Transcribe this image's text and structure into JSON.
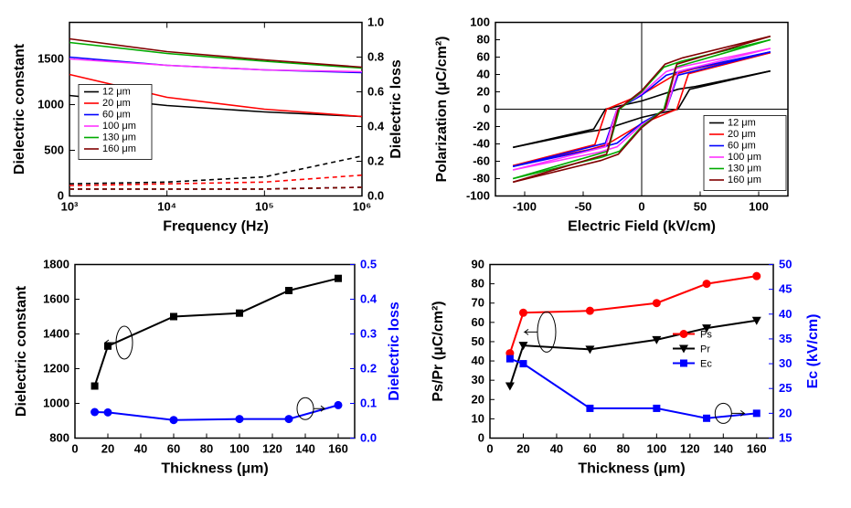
{
  "palette": {
    "series": [
      "#000000",
      "#ff0000",
      "#0000ff",
      "#ff33ff",
      "#00aa00",
      "#800000"
    ],
    "axis": "#000000",
    "axis2_blue": "#0000ff",
    "marker_red": "#ff0000",
    "marker_black": "#000000",
    "marker_blue": "#0000ff",
    "background": "#ffffff"
  },
  "legend_unit": "μm",
  "chart_tl": {
    "type": "line",
    "xlabel": "Frequency (Hz)",
    "ylabel_left": "Dielectric constant",
    "ylabel_right": "Dielectric loss",
    "xlog": true,
    "xlim": [
      1000,
      1000000
    ],
    "xticks": [
      1000,
      10000,
      100000,
      1000000
    ],
    "xtick_labels": [
      "10³",
      "10⁴",
      "10⁵",
      "10⁶"
    ],
    "ylim_left": [
      0,
      1900
    ],
    "yticks_left": [
      0,
      500,
      1000,
      1500
    ],
    "ylim_right": [
      0.0,
      1.0
    ],
    "yticks_right": [
      0.0,
      0.2,
      0.4,
      0.6,
      0.8,
      1.0
    ],
    "series_labels": [
      "12 μm",
      "20 μm",
      "60 μm",
      "100 μm",
      "130 μm",
      "160 μm"
    ],
    "solid_values_at_ticks": [
      [
        1100,
        990,
        920,
        870
      ],
      [
        1330,
        1080,
        950,
        870
      ],
      [
        1520,
        1430,
        1380,
        1350
      ],
      [
        1500,
        1430,
        1380,
        1360
      ],
      [
        1680,
        1560,
        1475,
        1400
      ],
      [
        1720,
        1580,
        1490,
        1410
      ]
    ],
    "dashed_values_at_ticks": [
      [
        0.07,
        0.08,
        0.11,
        0.23
      ],
      [
        0.06,
        0.07,
        0.08,
        0.12
      ],
      [
        0.04,
        0.04,
        0.04,
        0.05
      ],
      [
        0.04,
        0.04,
        0.04,
        0.05
      ],
      [
        0.04,
        0.04,
        0.04,
        0.05
      ],
      [
        0.04,
        0.04,
        0.04,
        0.05
      ]
    ],
    "label_fontsize": 16,
    "tick_fontsize": 13,
    "line_width": 1.6
  },
  "chart_tr": {
    "type": "line",
    "xlabel": "Electric Field (kV/cm)",
    "ylabel": "Polarization (μC/cm²)",
    "xlim": [
      -125,
      125
    ],
    "xticks": [
      -100,
      -50,
      0,
      50,
      100
    ],
    "ylim": [
      -100,
      100
    ],
    "yticks": [
      -100,
      -80,
      -60,
      -40,
      -20,
      0,
      20,
      40,
      60,
      80,
      100
    ],
    "series_labels": [
      "12 μm",
      "20 μm",
      "60 μm",
      "100 μm",
      "130 μm",
      "160 μm"
    ],
    "loops": [
      {
        "Ps": 44,
        "Pr": 27,
        "Ec": 31
      },
      {
        "Ps": 65,
        "Pr": 48,
        "Ec": 30
      },
      {
        "Ps": 66,
        "Pr": 46,
        "Ec": 21
      },
      {
        "Ps": 70,
        "Pr": 51,
        "Ec": 21
      },
      {
        "Ps": 80,
        "Pr": 57,
        "Ec": 19
      },
      {
        "Ps": 84,
        "Pr": 61,
        "Ec": 20
      }
    ],
    "Emax": 110,
    "label_fontsize": 16,
    "tick_fontsize": 13,
    "line_width": 1.6
  },
  "chart_bl": {
    "type": "scatter-line-dual",
    "xlabel": "Thickness (μm)",
    "ylabel_left": "Dielectric constant",
    "ylabel_right": "Dielectric loss",
    "xlim": [
      0,
      170
    ],
    "xticks": [
      0,
      20,
      40,
      60,
      80,
      100,
      120,
      140,
      160
    ],
    "ylim_left": [
      800,
      1800
    ],
    "yticks_left": [
      800,
      1000,
      1200,
      1400,
      1600,
      1800
    ],
    "ylim_right": [
      0.0,
      0.5
    ],
    "yticks_right": [
      0.0,
      0.1,
      0.2,
      0.3,
      0.4,
      0.5
    ],
    "x_values": [
      12,
      20,
      60,
      100,
      130,
      160
    ],
    "constant_values": [
      1100,
      1330,
      1500,
      1520,
      1650,
      1720
    ],
    "loss_values": [
      0.075,
      0.074,
      0.052,
      0.055,
      0.055,
      0.095
    ],
    "constant_color": "#000000",
    "loss_color": "#0000ff",
    "marker_size": 5,
    "line_width": 2
  },
  "chart_br": {
    "type": "scatter-line-dual",
    "xlabel": "Thickness (μm)",
    "ylabel_left": "Ps/Pr (μC/cm²)",
    "ylabel_right": "Ec (kV/cm)",
    "xlim": [
      0,
      170
    ],
    "xticks": [
      0,
      20,
      40,
      60,
      80,
      100,
      120,
      140,
      160
    ],
    "ylim_left": [
      0,
      90
    ],
    "yticks_left": [
      0,
      10,
      20,
      30,
      40,
      50,
      60,
      70,
      80,
      90
    ],
    "ylim_right": [
      15,
      50
    ],
    "yticks_right": [
      15,
      20,
      25,
      30,
      35,
      40,
      45,
      50
    ],
    "x_values": [
      12,
      20,
      60,
      100,
      130,
      160
    ],
    "Ps_values": [
      44,
      65,
      66,
      70,
      80,
      84
    ],
    "Pr_values": [
      27,
      48,
      46,
      51,
      57,
      61
    ],
    "Ec_values": [
      31,
      30,
      21,
      21,
      19,
      20
    ],
    "legend_labels": [
      "Ps",
      "Pr",
      "Ec"
    ],
    "Ps_color": "#ff0000",
    "Pr_color": "#000000",
    "Ec_color": "#0000ff",
    "marker_size": 5,
    "line_width": 2
  }
}
